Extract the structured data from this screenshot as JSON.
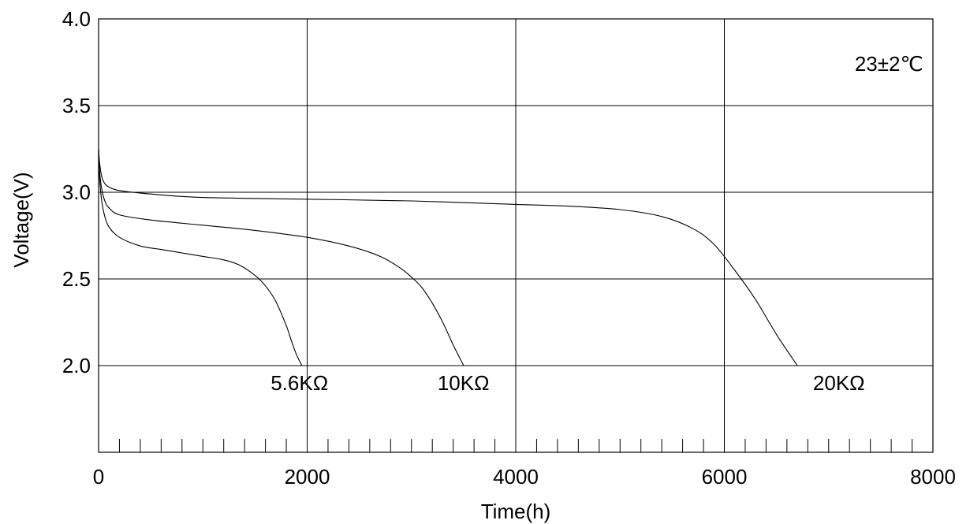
{
  "chart_data": {
    "type": "line",
    "title": "",
    "xlabel": "Time(h)",
    "ylabel": "Voltage(V)",
    "xlim": [
      0,
      8000
    ],
    "ylim": [
      1.5,
      4.0
    ],
    "xticks": [
      0,
      2000,
      4000,
      6000,
      8000
    ],
    "xtick_labels": [
      "0",
      "2000",
      "4000",
      "6000",
      "8000"
    ],
    "yticks": [
      2.0,
      2.5,
      3.0,
      3.5,
      4.0
    ],
    "ytick_labels": [
      "2.0",
      "2.5",
      "3.0",
      "3.5",
      "4.0"
    ],
    "minor_xtick_step": 200,
    "grid": true,
    "annotation": "23±2℃",
    "series": [
      {
        "name": "5.6KΩ",
        "x": [
          0,
          10,
          30,
          60,
          100,
          200,
          400,
          600,
          800,
          1000,
          1200,
          1350,
          1500,
          1600,
          1700,
          1800,
          1850,
          1900,
          1950
        ],
        "y": [
          3.25,
          3.08,
          2.95,
          2.86,
          2.8,
          2.74,
          2.69,
          2.67,
          2.65,
          2.63,
          2.61,
          2.58,
          2.52,
          2.46,
          2.37,
          2.23,
          2.14,
          2.06,
          2.0
        ]
      },
      {
        "name": "10KΩ",
        "x": [
          0,
          10,
          30,
          60,
          100,
          200,
          500,
          1000,
          1500,
          2000,
          2400,
          2700,
          2900,
          3000,
          3100,
          3200,
          3300,
          3400,
          3500
        ],
        "y": [
          3.25,
          3.12,
          3.02,
          2.95,
          2.91,
          2.87,
          2.84,
          2.81,
          2.78,
          2.74,
          2.69,
          2.63,
          2.56,
          2.51,
          2.45,
          2.36,
          2.25,
          2.12,
          2.0
        ]
      },
      {
        "name": "20KΩ",
        "x": [
          0,
          10,
          30,
          60,
          100,
          200,
          500,
          1000,
          2000,
          3000,
          4000,
          4500,
          5000,
          5400,
          5700,
          5900,
          6100,
          6300,
          6500,
          6700
        ],
        "y": [
          3.25,
          3.17,
          3.09,
          3.05,
          3.03,
          3.01,
          2.99,
          2.97,
          2.96,
          2.95,
          2.93,
          2.92,
          2.9,
          2.86,
          2.79,
          2.7,
          2.55,
          2.38,
          2.18,
          2.0
        ]
      }
    ],
    "series_labels": [
      {
        "text": "5.6KΩ",
        "x": 1650,
        "y": 1.9
      },
      {
        "text": "10KΩ",
        "x": 3250,
        "y": 1.9
      },
      {
        "text": "20KΩ",
        "x": 6850,
        "y": 1.9
      }
    ],
    "annotation_position": {
      "x": 7250,
      "y": 3.74
    }
  }
}
